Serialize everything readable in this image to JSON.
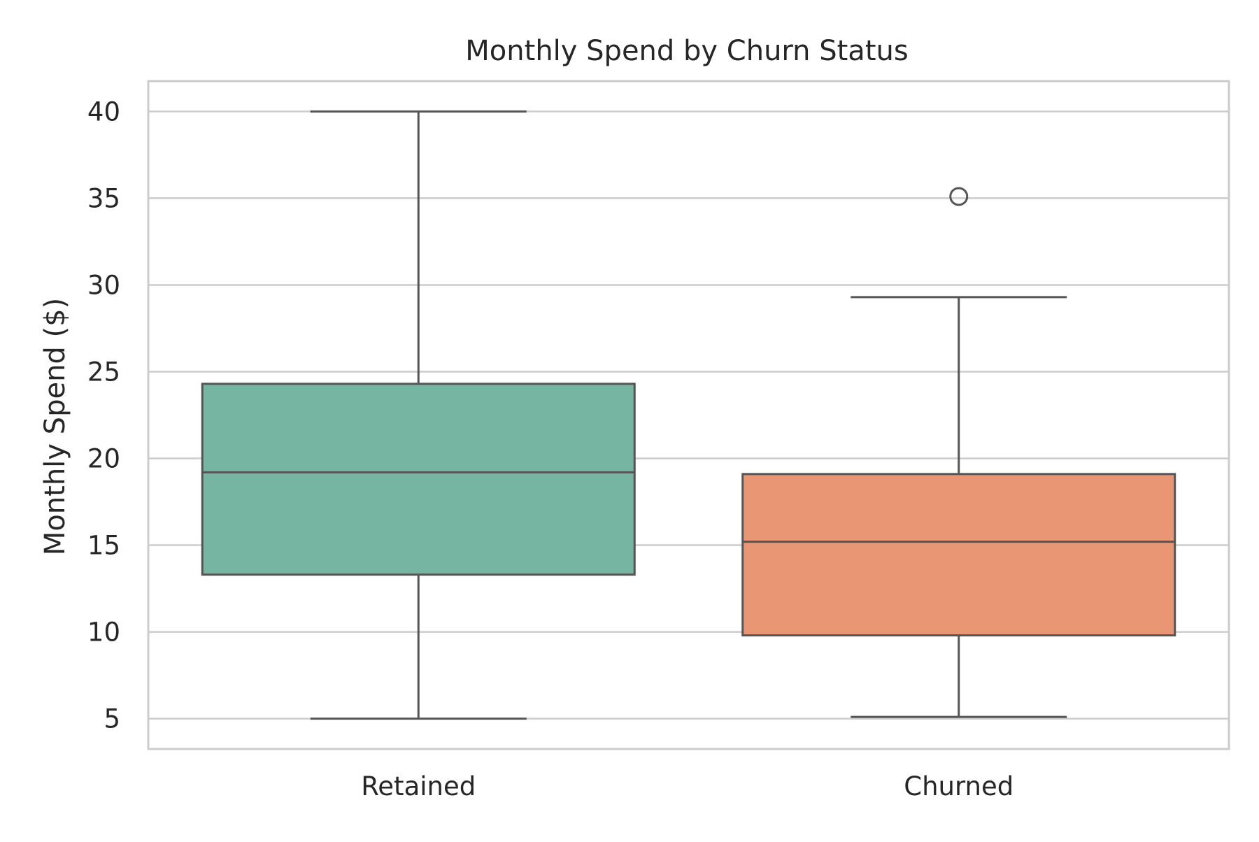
{
  "chart_data": {
    "type": "box",
    "title": "Monthly Spend by Churn Status",
    "xlabel": "",
    "ylabel": "Monthly Spend ($)",
    "ylim": [
      3.25,
      41.75
    ],
    "yticks": [
      5,
      10,
      15,
      20,
      25,
      30,
      35,
      40
    ],
    "grid": true,
    "categories": [
      "Retained",
      "Churned"
    ],
    "boxes": [
      {
        "category": "Retained",
        "whisker_low": 5.0,
        "q1": 13.3,
        "median": 19.2,
        "q3": 24.3,
        "whisker_high": 40.0,
        "outliers": [],
        "color": "#75b5a1"
      },
      {
        "category": "Churned",
        "whisker_low": 5.1,
        "q1": 9.8,
        "median": 15.2,
        "q3": 19.1,
        "whisker_high": 29.3,
        "outliers": [
          35.1
        ],
        "color": "#e99674"
      }
    ],
    "colors": {
      "line": "#555555",
      "grid": "#cccccc",
      "spine": "#cccccc",
      "text": "#262626"
    }
  }
}
